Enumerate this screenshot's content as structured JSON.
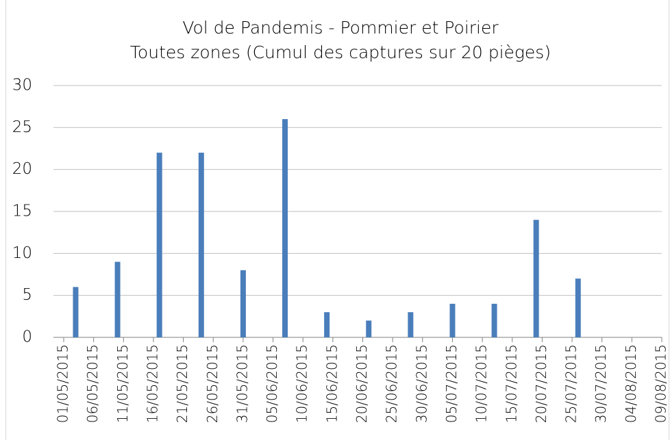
{
  "chart_data": {
    "type": "bar",
    "title": "Vol de Pandemis - Pommier et Poirier",
    "subtitle": "Toutes zones (Cumul des captures sur 20 pièges)",
    "x": [
      "03/05/2015",
      "10/05/2015",
      "17/05/2015",
      "24/05/2015",
      "31/05/2015",
      "07/06/2015",
      "14/06/2015",
      "21/06/2015",
      "28/06/2015",
      "05/07/2015",
      "12/07/2015",
      "19/07/2015",
      "26/07/2015"
    ],
    "values": [
      6,
      9,
      22,
      22,
      8,
      26,
      3,
      2,
      3,
      4,
      4,
      14,
      7
    ],
    "color": "#4a7ebb",
    "xlim": [
      "01/05/2015",
      "09/08/2015"
    ],
    "xticks": [
      "01/05/2015",
      "06/05/2015",
      "11/05/2015",
      "16/05/2015",
      "21/05/2015",
      "26/05/2015",
      "31/05/2015",
      "05/06/2015",
      "10/06/2015",
      "15/06/2015",
      "20/06/2015",
      "25/06/2015",
      "30/06/2015",
      "05/07/2015",
      "10/07/2015",
      "15/07/2015",
      "20/07/2015",
      "25/07/2015",
      "30/07/2015",
      "04/08/2015",
      "09/08/2015"
    ],
    "ylim": [
      0,
      30
    ],
    "yticks": [
      0,
      5,
      10,
      15,
      20,
      25,
      30
    ],
    "grid": true
  }
}
